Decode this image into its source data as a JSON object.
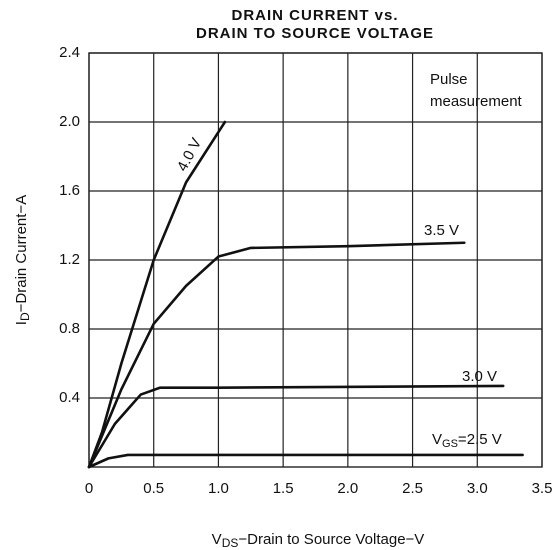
{
  "chart_data": {
    "type": "line",
    "title": [
      "DRAIN CURRENT vs.",
      "DRAIN TO SOURCE VOLTAGE"
    ],
    "x_label": {
      "main": "V",
      "sub": "DS",
      "rest": "−Drain to Source Voltage−V"
    },
    "y_label": {
      "main": "I",
      "sub": "D",
      "rest": "−Drain Current−A"
    },
    "annotation": [
      "Pulse",
      "measurement"
    ],
    "label_prefix": {
      "main": "V",
      "sub": "GS",
      "eq": "="
    },
    "xlim": [
      0,
      3.5
    ],
    "ylim": [
      0,
      2.4
    ],
    "xticks": [
      0,
      0.5,
      {
        "value": 1,
        "label": "1.0"
      },
      1.5,
      {
        "value": 2,
        "label": "2.0"
      },
      2.5,
      {
        "value": 3,
        "label": "3.0"
      },
      3.5
    ],
    "yticks": [
      0.4,
      0.8,
      1.2,
      1.6,
      {
        "value": 2,
        "label": "2.0"
      },
      2.4
    ],
    "grid": true,
    "series": [
      {
        "name": "4.0 V",
        "color": "#111111",
        "x": [
          0,
          0.1,
          0.25,
          0.5,
          0.75,
          1.05
        ],
        "values": [
          0,
          0.2,
          0.6,
          1.2,
          1.65,
          2.0
        ]
      },
      {
        "name": "3.5 V",
        "color": "#111111",
        "x": [
          0,
          0.25,
          0.5,
          0.75,
          1.0,
          1.25,
          2.0,
          2.9
        ],
        "values": [
          0,
          0.45,
          0.83,
          1.05,
          1.22,
          1.27,
          1.28,
          1.3
        ]
      },
      {
        "name": "3.0 V",
        "color": "#111111",
        "x": [
          0,
          0.2,
          0.4,
          0.55,
          1.0,
          3.2
        ],
        "values": [
          0,
          0.25,
          0.42,
          0.46,
          0.46,
          0.47
        ]
      },
      {
        "name": "2.5 V",
        "color": "#111111",
        "x": [
          0,
          0.15,
          0.3,
          3.35
        ],
        "values": [
          0,
          0.05,
          0.07,
          0.07
        ]
      }
    ]
  }
}
